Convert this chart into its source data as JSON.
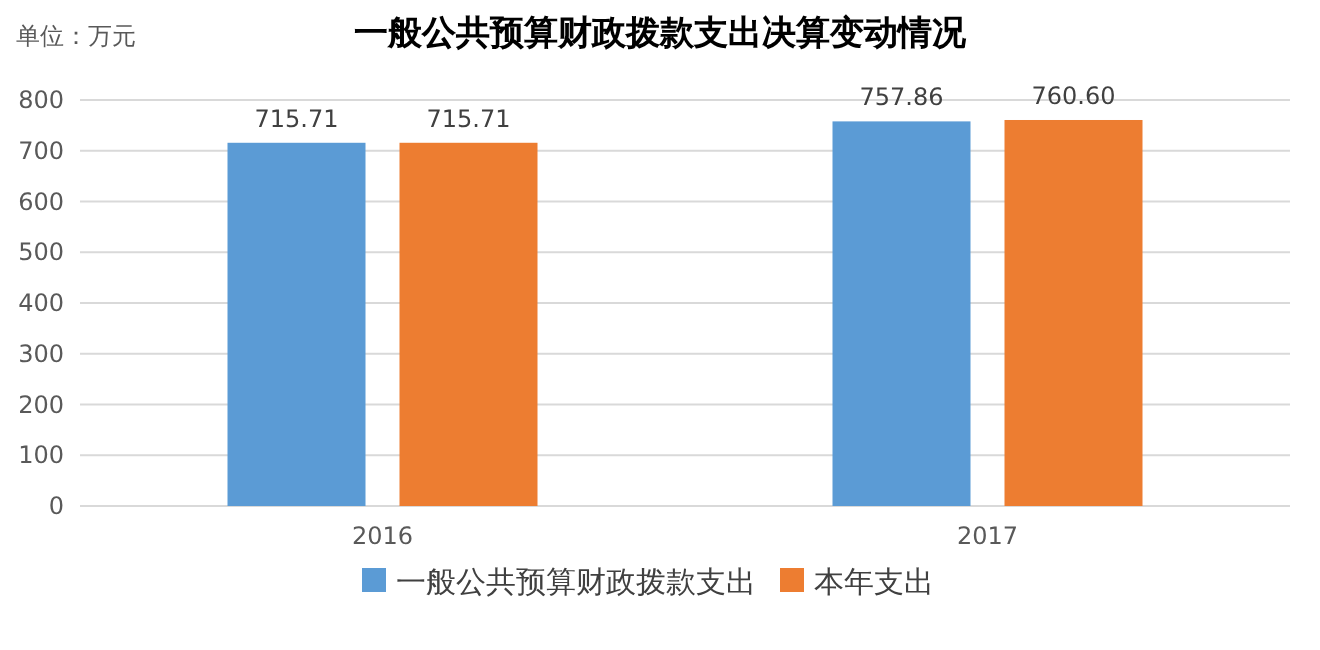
{
  "chart_data": {
    "type": "bar",
    "title": "一般公共预算财政拨款支出决算变动情况",
    "ylabel": "单位：万元",
    "categories": [
      "2016",
      "2017"
    ],
    "series": [
      {
        "name": "一般公共预算财政拨款支出",
        "color": "#5b9bd5",
        "values": [
          715.71,
          757.86
        ],
        "value_labels": [
          "715.71",
          "757.86"
        ]
      },
      {
        "name": "本年支出",
        "color": "#ed7d31",
        "values": [
          715.71,
          760.6
        ],
        "value_labels": [
          "715.71",
          "760.60"
        ]
      }
    ],
    "ylim": [
      0,
      800
    ],
    "yticks": [
      0,
      100,
      200,
      300,
      400,
      500,
      600,
      700,
      800
    ],
    "grid": "y",
    "legend": "bottom"
  }
}
